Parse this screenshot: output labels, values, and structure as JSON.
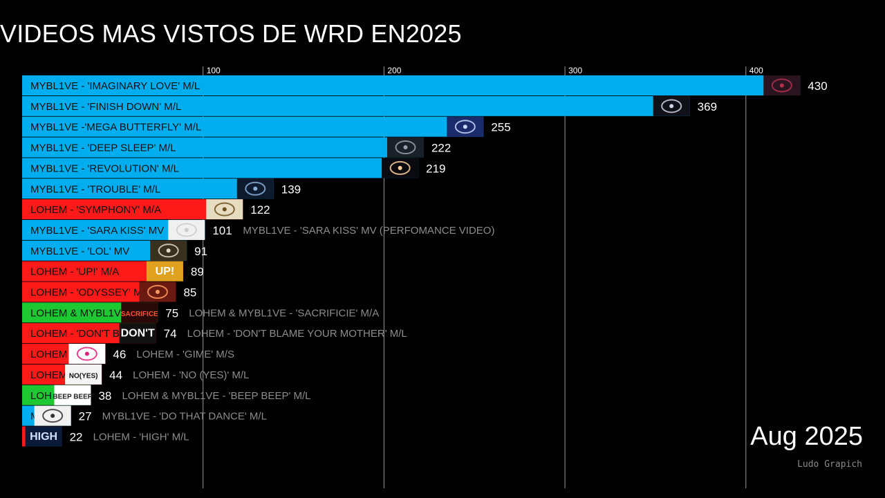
{
  "page": {
    "title": "VIDEOS MAS VISTOS DE WRD EN2025",
    "date_label": "Aug 2025",
    "credit": "Ludo Grapich"
  },
  "colors": {
    "background": "#000000",
    "mybl1ve": "#00adef",
    "lohem": "#ff1a1a",
    "collab": "#1ec832",
    "gridline": "#9a9a9a",
    "value_text": "#ffffff",
    "outside_label_text": "#8c8c8c"
  },
  "chart_data": {
    "type": "bar",
    "orientation": "horizontal",
    "title": "VIDEOS MAS VISTOS DE WRD EN2025",
    "xlim": [
      0,
      430
    ],
    "xticks": [
      100,
      200,
      300,
      400
    ],
    "grid": true,
    "bars": [
      {
        "label": "MYBL1VE - 'IMAGINARY LOVE' M/L",
        "value": 430,
        "group": "mybl1ve",
        "outside_label": ""
      },
      {
        "label": "MYBL1VE - 'FINISH DOWN' M/L",
        "value": 369,
        "group": "mybl1ve",
        "outside_label": ""
      },
      {
        "label": "MYBL1VE -'MEGA BUTTERFLY' M/L",
        "value": 255,
        "group": "mybl1ve",
        "outside_label": ""
      },
      {
        "label": "MYBL1VE - 'DEEP SLEEP' M/L",
        "value": 222,
        "group": "mybl1ve",
        "outside_label": ""
      },
      {
        "label": "MYBL1VE - 'REVOLUTION' M/L",
        "value": 219,
        "group": "mybl1ve",
        "outside_label": ""
      },
      {
        "label": "MYBL1VE - 'TROUBLE' M/L",
        "value": 139,
        "group": "mybl1ve",
        "outside_label": ""
      },
      {
        "label": "LOHEM - 'SYMPHONY' M/A",
        "value": 122,
        "group": "lohem",
        "outside_label": ""
      },
      {
        "label": "MYBL1VE - 'SARA KISS' MV",
        "value": 101,
        "group": "mybl1ve",
        "outside_label": "MYBL1VE - 'SARA KISS' MV (PERFOMANCE VIDEO)"
      },
      {
        "label": "MYBL1VE - 'LOL' MV",
        "value": 91,
        "group": "mybl1ve",
        "outside_label": ""
      },
      {
        "label": "LOHEM - 'UP!' M/A",
        "value": 89,
        "group": "lohem",
        "outside_label": ""
      },
      {
        "label": "LOHEM - 'ODYSSEY' M",
        "value": 85,
        "group": "lohem",
        "outside_label": ""
      },
      {
        "label": "LOHEM & MYBL1V",
        "value": 75,
        "group": "collab",
        "outside_label": "LOHEM & MYBL1VE - 'SACRIFICIE' M/A"
      },
      {
        "label": "LOHEM - 'DON'T B",
        "value": 74,
        "group": "lohem",
        "outside_label": "LOHEM - 'DON'T BLAME YOUR MOTHER' M/L"
      },
      {
        "label": "LOHEM",
        "value": 46,
        "group": "lohem",
        "outside_label": "LOHEM - 'GIME' M/S"
      },
      {
        "label": "LOHEM",
        "value": 44,
        "group": "lohem",
        "outside_label": "LOHEM - 'NO (YES)' M/L"
      },
      {
        "label": "LOH",
        "value": 38,
        "group": "collab",
        "outside_label": "LOHEM & MYBL1VE - 'BEEP BEEP' M/L"
      },
      {
        "label": "M",
        "value": 27,
        "group": "mybl1ve",
        "outside_label": "MYBL1VE - 'DO THAT DANCE' M/L"
      },
      {
        "label": "",
        "value": 22,
        "group": "lohem",
        "outside_label": "LOHEM - 'HIGH' M/L"
      }
    ]
  },
  "thumbnails": [
    {
      "icon": "heart-thumbnail",
      "fg": "#b03050",
      "bg": "#2a1420",
      "text": ""
    },
    {
      "icon": "orb-thumbnail",
      "fg": "#d0d0e0",
      "bg": "#101018",
      "text": ""
    },
    {
      "icon": "butterfly-thumbnail",
      "fg": "#c8d8ff",
      "bg": "#1a2a6a",
      "text": ""
    },
    {
      "icon": "deep-sleep-thumbnail",
      "fg": "#9aa0b0",
      "bg": "#1a2028",
      "text": ""
    },
    {
      "icon": "eclipse-thumbnail",
      "fg": "#ffd0a0",
      "bg": "#0a0a10",
      "text": ""
    },
    {
      "icon": "trouble-thumbnail",
      "fg": "#8ab0d8",
      "bg": "#0e1a2e",
      "text": ""
    },
    {
      "icon": "symphony-thumbnail",
      "fg": "#6a5020",
      "bg": "#e8dcc0",
      "text": ""
    },
    {
      "icon": "sara-kiss-thumbnail",
      "fg": "#cccccc",
      "bg": "#f0f0f0",
      "text": ""
    },
    {
      "icon": "lol-thumbnail",
      "fg": "#e0d8c8",
      "bg": "#3a3020",
      "text": ""
    },
    {
      "icon": "up-thumbnail",
      "fg": "#ffffff",
      "bg": "#e0a020",
      "text": "UP!"
    },
    {
      "icon": "odyssey-thumbnail",
      "fg": "#ff9a60",
      "bg": "#6a1a10",
      "text": ""
    },
    {
      "icon": "sacrifice-thumbnail",
      "fg": "#ff5030",
      "bg": "#2a0a08",
      "text": "SACRIFICE"
    },
    {
      "icon": "dont-blame-thumbnail",
      "fg": "#ffffff",
      "bg": "#111111",
      "text": "DON'T"
    },
    {
      "icon": "lips-thumbnail",
      "fg": "#e0207a",
      "bg": "#ffffff",
      "text": ""
    },
    {
      "icon": "no-yes-thumbnail",
      "fg": "#111111",
      "bg": "#f4f4f4",
      "text": "NO(YES)"
    },
    {
      "icon": "beep-beep-thumbnail",
      "fg": "#222222",
      "bg": "#ffffff",
      "text": "BEEP BEEP"
    },
    {
      "icon": "do-that-dance-thumbnail",
      "fg": "#333333",
      "bg": "#f0f0f0",
      "text": ""
    },
    {
      "icon": "high-thumbnail",
      "fg": "#d0e0ff",
      "bg": "#0a1a3a",
      "text": "HIGH"
    }
  ]
}
